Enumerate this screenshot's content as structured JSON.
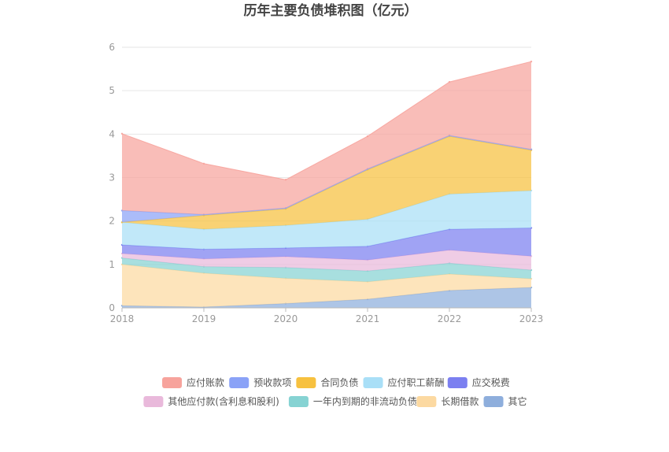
{
  "chart_data": {
    "type": "area",
    "stacked": true,
    "title": "历年主要负债堆积图（亿元）",
    "xlabel": "",
    "ylabel": "",
    "categories": [
      "2018",
      "2019",
      "2020",
      "2021",
      "2022",
      "2023"
    ],
    "y_ticks": [
      "0",
      "1",
      "2",
      "3",
      "4",
      "5",
      "6"
    ],
    "ylim": [
      0,
      6
    ],
    "grid": true,
    "legend_position": "bottom",
    "series": [
      {
        "name": "其它",
        "color": "#8eaedc",
        "values": [
          0.05,
          0.02,
          0.1,
          0.2,
          0.4,
          0.47
        ]
      },
      {
        "name": "长期借款",
        "color": "#fcd9a1",
        "values": [
          0.95,
          0.78,
          0.58,
          0.4,
          0.38,
          0.2
        ]
      },
      {
        "name": "一年内到期的非流动负债",
        "color": "#86d3d3",
        "values": [
          0.15,
          0.15,
          0.25,
          0.25,
          0.25,
          0.2
        ]
      },
      {
        "name": "其他应付款(含利息和股利)",
        "color": "#e9b9db",
        "values": [
          0.1,
          0.18,
          0.25,
          0.25,
          0.3,
          0.32
        ]
      },
      {
        "name": "应交税费",
        "color": "#7b7ff0",
        "values": [
          0.2,
          0.22,
          0.2,
          0.32,
          0.48,
          0.65
        ]
      },
      {
        "name": "应付职工薪酬",
        "color": "#a9dff7",
        "values": [
          0.52,
          0.46,
          0.52,
          0.62,
          0.81,
          0.86
        ]
      },
      {
        "name": "合同负债",
        "color": "#f7c13f",
        "values": [
          0.0,
          0.32,
          0.38,
          1.14,
          1.33,
          0.93
        ]
      },
      {
        "name": "预收款项",
        "color": "#8aa2f7",
        "values": [
          0.27,
          0.02,
          0.02,
          0.02,
          0.02,
          0.02
        ]
      },
      {
        "name": "应付账款",
        "color": "#f7a39c",
        "values": [
          1.77,
          1.17,
          0.65,
          0.75,
          1.23,
          2.02
        ]
      }
    ],
    "legend_order": [
      "应付账款",
      "预收款项",
      "合同负债",
      "应付职工薪酬",
      "应交税费",
      "其他应付款(含利息和股利)",
      "一年内到期的非流动负债",
      "长期借款",
      "其它"
    ]
  }
}
